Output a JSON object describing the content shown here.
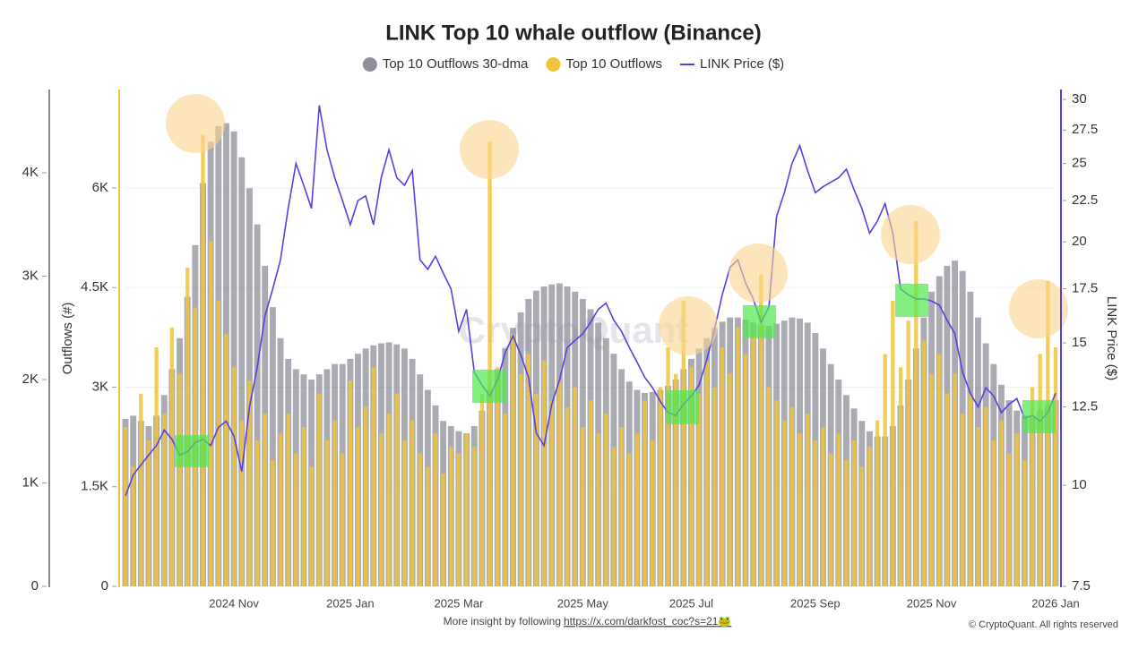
{
  "chart_data": {
    "type": "bar",
    "title": "LINK Top 10 whale outflow (Binance)",
    "ylabel": "Outflows (#)",
    "y2label": "LINK Price ($)",
    "watermark": "CryptoQuant",
    "footer": "More insight by following",
    "footer_link": "https://x.com/darkfost_coc?s=21🐸",
    "copyright": "© CryptoQuant. All rights reserved",
    "grid": true,
    "y2log": true,
    "ylim": [
      0,
      7483
    ],
    "yticks": [
      0,
      {
        "value": 1500,
        "label": "1.5K"
      },
      {
        "value": 3000,
        "label": "3K"
      },
      {
        "value": 4500,
        "label": "4.5K"
      },
      {
        "value": 6000,
        "label": "6K"
      }
    ],
    "y3lim": [
      0,
      4805
    ],
    "y3ticks": [
      0,
      {
        "value": 1000,
        "label": "1K"
      },
      {
        "value": 2000,
        "label": "2K"
      },
      {
        "value": 3000,
        "label": "3K"
      },
      {
        "value": 4000,
        "label": "4K"
      }
    ],
    "y2lim": [
      7.5,
      30.86
    ],
    "y2ticks": [
      7.5,
      10,
      12.5,
      15,
      17.5,
      20,
      22.5,
      25,
      27.5,
      30
    ],
    "categories": [
      null,
      null,
      null,
      null,
      null,
      null,
      null,
      null,
      null,
      null,
      null,
      null,
      null,
      null,
      "2024 Nov",
      null,
      null,
      null,
      null,
      null,
      null,
      null,
      null,
      null,
      null,
      null,
      null,
      null,
      null,
      "2025 Jan",
      null,
      null,
      null,
      null,
      null,
      null,
      null,
      null,
      null,
      null,
      null,
      null,
      null,
      "2025 Mar",
      null,
      null,
      null,
      null,
      null,
      null,
      null,
      null,
      null,
      null,
      null,
      null,
      null,
      null,
      null,
      "2025 May",
      null,
      null,
      null,
      null,
      null,
      null,
      null,
      null,
      null,
      null,
      null,
      null,
      null,
      "2025 Jul",
      null,
      null,
      null,
      null,
      null,
      null,
      null,
      null,
      null,
      null,
      null,
      null,
      null,
      null,
      null,
      "2025 Sep",
      null,
      null,
      null,
      null,
      null,
      null,
      null,
      null,
      null,
      null,
      null,
      null,
      null,
      null,
      "2025 Nov",
      null,
      null,
      null,
      null,
      null,
      null,
      null,
      null,
      null,
      null,
      null,
      null,
      null,
      null,
      null,
      "2026 Jan"
    ],
    "series": [
      {
        "name": "Top 10 Outflows 30-dma",
        "color": "#8e8e99",
        "axis": "y3",
        "type": "bar",
        "values": [
          1620,
          1650,
          1600,
          1550,
          1650,
          1850,
          2100,
          2400,
          2800,
          3300,
          3900,
          4300,
          4450,
          4480,
          4400,
          4150,
          3850,
          3500,
          3100,
          2700,
          2400,
          2200,
          2100,
          2050,
          2000,
          2050,
          2100,
          2150,
          2150,
          2200,
          2250,
          2300,
          2330,
          2350,
          2360,
          2340,
          2300,
          2200,
          2050,
          1900,
          1750,
          1600,
          1550,
          1500,
          1480,
          1550,
          1700,
          1900,
          2100,
          2300,
          2500,
          2650,
          2780,
          2860,
          2900,
          2920,
          2930,
          2900,
          2850,
          2780,
          2680,
          2550,
          2400,
          2250,
          2100,
          1980,
          1900,
          1870,
          1880,
          1900,
          1940,
          2000,
          2100,
          2200,
          2300,
          2400,
          2500,
          2560,
          2600,
          2600,
          2580,
          2550,
          2530,
          2520,
          2540,
          2570,
          2600,
          2590,
          2550,
          2450,
          2300,
          2150,
          2000,
          1850,
          1720,
          1600,
          1500,
          1450,
          1450,
          1550,
          1750,
          2000,
          2300,
          2600,
          2850,
          3000,
          3100,
          3150,
          3050,
          2850,
          2600,
          2350,
          2150,
          1950,
          1800,
          1700,
          1650,
          1650,
          1700,
          1750,
          1800
        ]
      },
      {
        "name": "Top 10 Outflows",
        "color": "#f0c53a",
        "type": "bar",
        "values": [
          2400,
          1800,
          2900,
          2200,
          3600,
          2600,
          3900,
          3200,
          4800,
          4200,
          6800,
          5200,
          4300,
          3800,
          3300,
          2500,
          3100,
          2200,
          2600,
          1900,
          2300,
          2600,
          2000,
          2400,
          1800,
          2900,
          2200,
          2500,
          2000,
          3100,
          2400,
          2700,
          3300,
          2300,
          2600,
          2900,
          2200,
          2500,
          2000,
          1800,
          2300,
          1700,
          2100,
          2000,
          2300,
          2100,
          2900,
          6700,
          3300,
          2600,
          3800,
          3200,
          3500,
          2900,
          3400,
          2800,
          3100,
          2700,
          3000,
          2400,
          2800,
          2300,
          2600,
          2100,
          2400,
          2000,
          2300,
          2800,
          2200,
          3000,
          3600,
          3200,
          4300,
          3300,
          2900,
          3400,
          3000,
          3600,
          3200,
          3900,
          3500,
          3800,
          4700,
          3000,
          2800,
          2500,
          2700,
          2300,
          2600,
          2200,
          2400,
          2000,
          2300,
          1900,
          2200,
          1800,
          2100,
          2500,
          3500,
          4300,
          3300,
          4000,
          5500,
          3700,
          3200,
          3500,
          2900,
          3200,
          2600,
          2900,
          2400,
          2700,
          2200,
          2500,
          2000,
          2300,
          1900,
          3000,
          3500,
          4600,
          3600
        ]
      },
      {
        "name": "LINK Price ($)",
        "color": "#5a3fe0",
        "axis": "y2",
        "type": "line",
        "values": [
          9.7,
          10.3,
          10.6,
          10.9,
          11.2,
          11.7,
          11.4,
          10.9,
          11.0,
          11.3,
          11.4,
          11.2,
          11.8,
          12.0,
          11.5,
          10.4,
          12.5,
          14.0,
          16.2,
          17.5,
          19.0,
          22.0,
          25.0,
          23.5,
          22.0,
          29.5,
          26.0,
          24.0,
          22.5,
          21.0,
          22.5,
          22.8,
          21.0,
          24.0,
          26.0,
          24.0,
          23.5,
          24.5,
          19.0,
          18.5,
          19.2,
          18.3,
          17.5,
          15.5,
          16.5,
          13.8,
          13.3,
          12.9,
          13.5,
          14.6,
          15.3,
          14.5,
          13.6,
          11.6,
          11.2,
          12.6,
          13.5,
          14.8,
          15.1,
          15.4,
          15.9,
          16.5,
          16.8,
          16.0,
          15.5,
          14.8,
          14.2,
          13.6,
          13.2,
          12.7,
          12.3,
          12.2,
          12.6,
          12.9,
          13.3,
          14.3,
          15.6,
          17.2,
          18.6,
          19.0,
          17.8,
          17.0,
          15.9,
          16.6,
          21.5,
          23.0,
          25.0,
          26.3,
          24.5,
          23.0,
          23.4,
          23.7,
          24.0,
          24.6,
          23.2,
          22.0,
          20.5,
          21.2,
          22.3,
          20.5,
          17.5,
          17.2,
          17.0,
          17.0,
          16.9,
          16.7,
          16.0,
          15.4,
          13.8,
          13.0,
          12.5,
          13.2,
          12.9,
          12.3,
          12.6,
          12.8,
          12.1,
          12.2,
          12.0,
          12.3,
          13.0
        ]
      }
    ]
  }
}
